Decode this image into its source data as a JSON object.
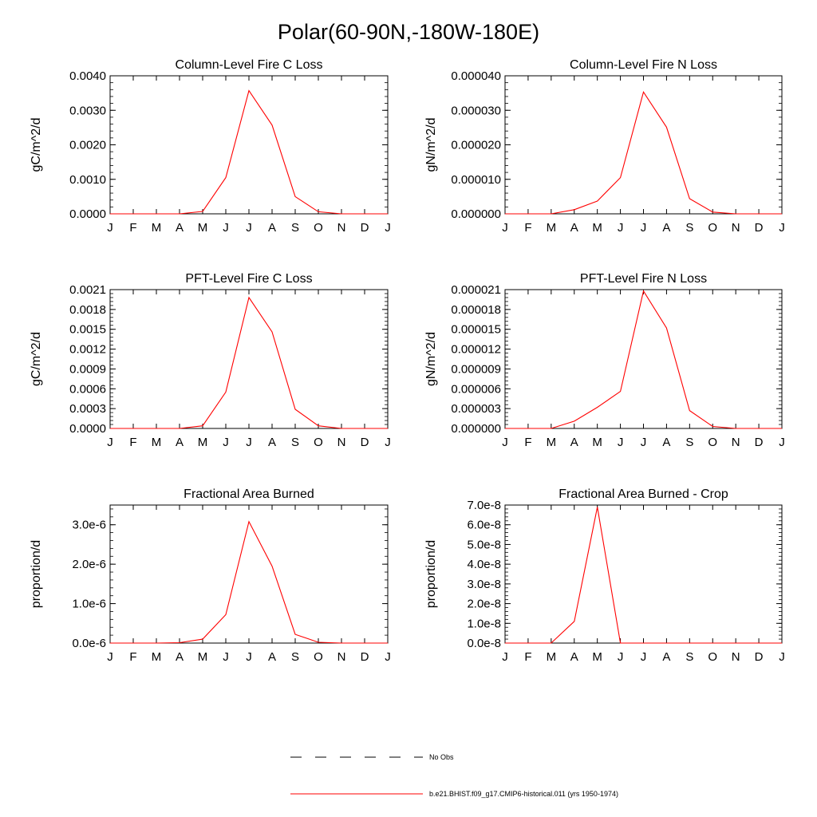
{
  "figure": {
    "title": "Polar(60-90N,-180W-180E)",
    "legend": [
      {
        "label": "No Obs",
        "color": "#000000",
        "style": "dashed"
      },
      {
        "label": "b.e21.BHIST.f09_g17.CMIP6-historical.011 (yrs 1950-1974)",
        "color": "#ff0000",
        "style": "solid"
      }
    ],
    "series_color": "#ff0000"
  },
  "chart_data": [
    {
      "type": "line",
      "title": "Column-Level Fire C Loss",
      "ylabel": "gC/m^2/d",
      "categories": [
        "J",
        "F",
        "M",
        "A",
        "M",
        "J",
        "J",
        "A",
        "S",
        "O",
        "N",
        "D",
        "J"
      ],
      "ylim": [
        0,
        0.004
      ],
      "yticks": [
        "0.0000",
        "0.0010",
        "0.0020",
        "0.0030",
        "0.0040"
      ],
      "series": [
        {
          "values": [
            0,
            0,
            0,
            0,
            7e-05,
            0.00105,
            0.00357,
            0.00257,
            0.0005,
            6e-05,
            0,
            0,
            0
          ]
        }
      ]
    },
    {
      "type": "line",
      "title": "Column-Level Fire N Loss",
      "ylabel": "gN/m^2/d",
      "categories": [
        "J",
        "F",
        "M",
        "A",
        "M",
        "J",
        "J",
        "A",
        "S",
        "O",
        "N",
        "D",
        "J"
      ],
      "ylim": [
        0,
        4e-05
      ],
      "yticks": [
        "0.000000",
        "0.000010",
        "0.000020",
        "0.000030",
        "0.000040"
      ],
      "series": [
        {
          "values": [
            0,
            0,
            0,
            1.2e-06,
            3.7e-06,
            1.05e-05,
            3.53e-05,
            2.51e-05,
            4.4e-06,
            5e-07,
            0,
            0,
            0
          ]
        }
      ]
    },
    {
      "type": "line",
      "title": "PFT-Level Fire C Loss",
      "ylabel": "gC/m^2/d",
      "categories": [
        "J",
        "F",
        "M",
        "A",
        "M",
        "J",
        "J",
        "A",
        "S",
        "O",
        "N",
        "D",
        "J"
      ],
      "ylim": [
        0,
        0.0021
      ],
      "yticks": [
        "0.0000",
        "0.0003",
        "0.0006",
        "0.0009",
        "0.0012",
        "0.0015",
        "0.0018",
        "0.0021"
      ],
      "series": [
        {
          "values": [
            0,
            0,
            0,
            0,
            4e-05,
            0.00055,
            0.00198,
            0.00146,
            0.00029,
            4e-05,
            0,
            0,
            0
          ]
        }
      ]
    },
    {
      "type": "line",
      "title": "PFT-Level Fire N Loss",
      "ylabel": "gN/m^2/d",
      "categories": [
        "J",
        "F",
        "M",
        "A",
        "M",
        "J",
        "J",
        "A",
        "S",
        "O",
        "N",
        "D",
        "J"
      ],
      "ylim": [
        0,
        2.1e-05
      ],
      "yticks": [
        "0.000000",
        "0.000003",
        "0.000006",
        "0.000009",
        "0.000012",
        "0.000015",
        "0.000018",
        "0.000021"
      ],
      "series": [
        {
          "values": [
            0,
            0,
            0,
            1.1e-06,
            3.2e-06,
            5.6e-06,
            2.08e-05,
            1.52e-05,
            2.7e-06,
            3e-07,
            0,
            0,
            0
          ]
        }
      ]
    },
    {
      "type": "line",
      "title": "Fractional Area Burned",
      "ylabel": "proportion/d",
      "categories": [
        "J",
        "F",
        "M",
        "A",
        "M",
        "J",
        "J",
        "A",
        "S",
        "O",
        "N",
        "D",
        "J"
      ],
      "ylim": [
        0,
        3.5e-06
      ],
      "yticks": [
        "0.0e-6",
        "1.0e-6",
        "2.0e-6",
        "3.0e-6"
      ],
      "ytick_values": [
        0,
        1e-06,
        2e-06,
        3e-06
      ],
      "series": [
        {
          "values": [
            0,
            0,
            0,
            1e-08,
            1e-07,
            7.2e-07,
            3.08e-06,
            1.95e-06,
            2.2e-07,
            2e-08,
            0,
            0,
            0
          ]
        }
      ]
    },
    {
      "type": "line",
      "title": "Fractional Area Burned - Crop",
      "ylabel": "proportion/d",
      "categories": [
        "J",
        "F",
        "M",
        "A",
        "M",
        "J",
        "J",
        "A",
        "S",
        "O",
        "N",
        "D",
        "J"
      ],
      "ylim": [
        0,
        7e-08
      ],
      "yticks": [
        "0.0e-8",
        "1.0e-8",
        "2.0e-8",
        "3.0e-8",
        "4.0e-8",
        "5.0e-8",
        "6.0e-8",
        "7.0e-8"
      ],
      "series": [
        {
          "values": [
            0,
            0,
            0,
            1.1e-08,
            6.9e-08,
            0,
            0,
            0,
            0,
            0,
            0,
            0,
            0
          ]
        }
      ]
    }
  ]
}
